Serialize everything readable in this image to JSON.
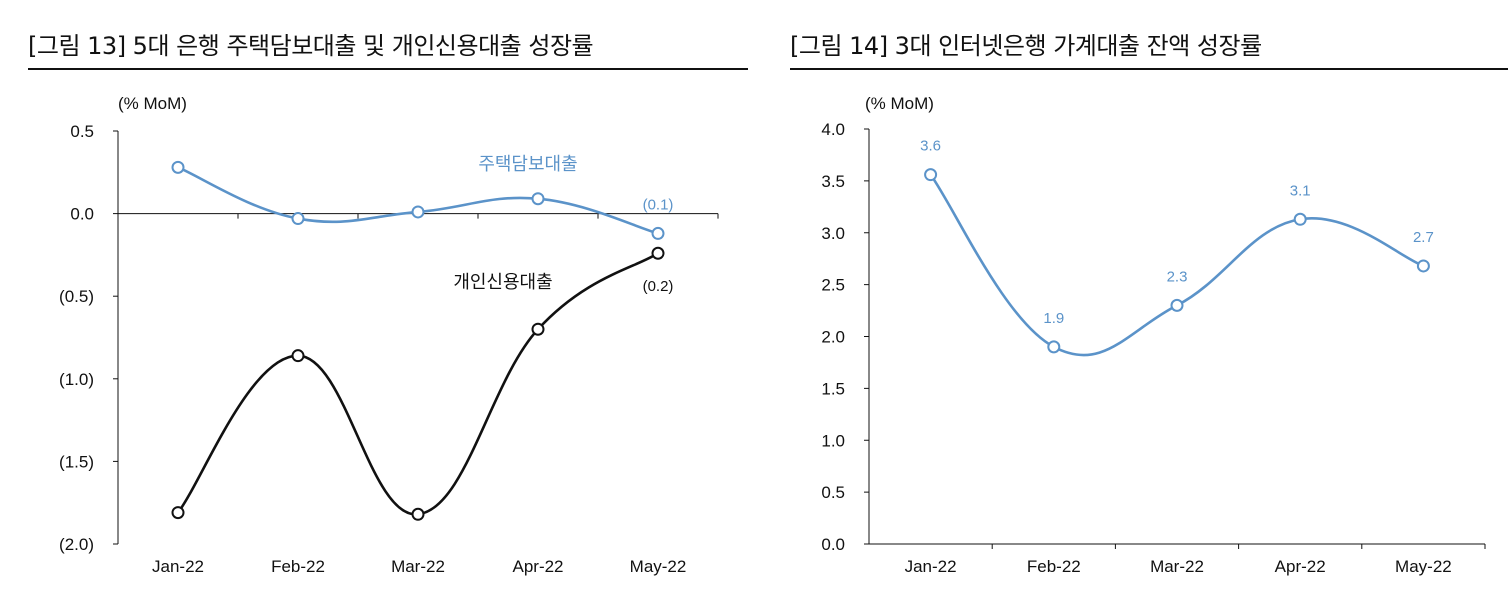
{
  "chart_data": [
    {
      "type": "line",
      "title": "[그림 13] 5대 은행 주택담보대출 및 개인신용대출 성장률",
      "unit_label": "(% MoM)",
      "categories": [
        "Jan-22",
        "Feb-22",
        "Mar-22",
        "Apr-22",
        "May-22"
      ],
      "ylim": [
        -2.0,
        0.5
      ],
      "yticks": [
        0.5,
        0.0,
        -0.5,
        -1.0,
        -1.5,
        -2.0
      ],
      "ytick_labels": [
        "0.5",
        "0.0",
        "(0.5)",
        "(1.0)",
        "(1.5)",
        "(2.0)"
      ],
      "series": [
        {
          "name": "주택담보대출",
          "color": "#5b93c9",
          "values": [
            0.28,
            -0.03,
            0.01,
            0.09,
            -0.12
          ],
          "last_label": "(0.1)"
        },
        {
          "name": "개인신용대출",
          "color": "#111111",
          "values": [
            -1.81,
            -0.86,
            -1.82,
            -0.7,
            -0.24
          ],
          "last_label": "(0.2)"
        }
      ]
    },
    {
      "type": "line",
      "title": "[그림 14] 3대 인터넷은행 가계대출 잔액 성장률",
      "unit_label": "(% MoM)",
      "categories": [
        "Jan-22",
        "Feb-22",
        "Mar-22",
        "Apr-22",
        "May-22"
      ],
      "ylim": [
        0.0,
        4.0
      ],
      "yticks": [
        4.0,
        3.5,
        3.0,
        2.5,
        2.0,
        1.5,
        1.0,
        0.5,
        0.0
      ],
      "ytick_labels": [
        "4.0",
        "3.5",
        "3.0",
        "2.5",
        "2.0",
        "1.5",
        "1.0",
        "0.5",
        "0.0"
      ],
      "series": [
        {
          "name": "가계대출 잔액 성장률",
          "color": "#5b93c9",
          "values": [
            3.56,
            1.9,
            2.3,
            3.13,
            2.68
          ],
          "data_labels": [
            "3.6",
            "1.9",
            "2.3",
            "3.1",
            "2.7"
          ]
        }
      ]
    }
  ]
}
